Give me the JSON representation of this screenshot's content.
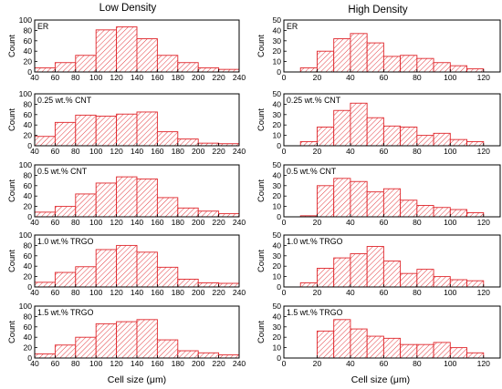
{
  "columns": [
    {
      "title": "Low Density",
      "xlabel": "Cell size (μm)",
      "xlim": [
        40,
        240
      ],
      "xticks": [
        40,
        60,
        80,
        100,
        120,
        140,
        160,
        180,
        200,
        220,
        240
      ],
      "bin_width": 20,
      "ylim": [
        0,
        100
      ],
      "yticks": [
        0,
        20,
        40,
        60,
        80,
        100
      ]
    },
    {
      "title": "High Density",
      "xlabel": "Cell size (μm)",
      "xlim": [
        0,
        130
      ],
      "xticks": [
        0,
        20,
        40,
        60,
        80,
        100,
        120
      ],
      "bin_width": 10,
      "ylim": [
        0,
        50
      ],
      "yticks": [
        0,
        10,
        20,
        30,
        40,
        50
      ]
    }
  ],
  "chart_data": [
    {
      "type": "bar",
      "column": 0,
      "label": "ER",
      "ylabel": "Count",
      "bins": [
        40,
        60,
        80,
        100,
        120,
        140,
        160,
        180,
        200,
        220
      ],
      "values": [
        8,
        18,
        32,
        81,
        87,
        64,
        32,
        18,
        8,
        5
      ]
    },
    {
      "type": "bar",
      "column": 0,
      "label": "0.25 wt.% CNT",
      "ylabel": "Count",
      "bins": [
        40,
        60,
        80,
        100,
        120,
        140,
        160,
        180,
        200,
        220
      ],
      "values": [
        18,
        45,
        59,
        57,
        61,
        65,
        27,
        13,
        5,
        4
      ]
    },
    {
      "type": "bar",
      "column": 0,
      "label": "0.5 wt.% CNT",
      "ylabel": "Count",
      "bins": [
        40,
        60,
        80,
        100,
        120,
        140,
        160,
        180,
        200,
        220
      ],
      "values": [
        9,
        20,
        44,
        65,
        77,
        73,
        37,
        17,
        11,
        6
      ]
    },
    {
      "type": "bar",
      "column": 0,
      "label": "1.0 wt.% TRGO",
      "ylabel": "Count",
      "bins": [
        40,
        60,
        80,
        100,
        120,
        140,
        160,
        180,
        200,
        220
      ],
      "values": [
        9,
        28,
        39,
        72,
        80,
        67,
        38,
        15,
        8,
        7
      ]
    },
    {
      "type": "bar",
      "column": 0,
      "label": "1.5 wt.% TRGO",
      "ylabel": "Count",
      "bins": [
        40,
        60,
        80,
        100,
        120,
        140,
        160,
        180,
        200,
        220
      ],
      "values": [
        8,
        25,
        40,
        66,
        70,
        74,
        35,
        14,
        10,
        6
      ]
    },
    {
      "type": "bar",
      "column": 1,
      "label": "ER",
      "ylabel": "Count",
      "bins": [
        10,
        20,
        30,
        40,
        50,
        60,
        70,
        80,
        90,
        100,
        110
      ],
      "values": [
        4,
        20,
        32,
        37,
        28,
        15,
        16,
        13,
        9,
        6,
        3
      ]
    },
    {
      "type": "bar",
      "column": 1,
      "label": "0.25 wt.% CNT",
      "ylabel": "Count",
      "bins": [
        10,
        20,
        30,
        40,
        50,
        60,
        70,
        80,
        90,
        100,
        110
      ],
      "values": [
        4,
        18,
        34,
        41,
        27,
        19,
        18,
        10,
        12,
        6,
        4
      ]
    },
    {
      "type": "bar",
      "column": 1,
      "label": "0.5 wt.% CNT",
      "ylabel": "Count",
      "bins": [
        10,
        20,
        30,
        40,
        50,
        60,
        70,
        80,
        90,
        100,
        110
      ],
      "values": [
        1,
        30,
        37,
        34,
        24,
        27,
        16,
        11,
        9,
        7,
        4
      ]
    },
    {
      "type": "bar",
      "column": 1,
      "label": "1.0 wt.% TRGO",
      "ylabel": "Count",
      "bins": [
        10,
        20,
        30,
        40,
        50,
        60,
        70,
        80,
        90,
        100,
        110
      ],
      "values": [
        4,
        18,
        28,
        32,
        39,
        25,
        13,
        17,
        10,
        7,
        6
      ]
    },
    {
      "type": "bar",
      "column": 1,
      "label": "1.5 wt.% TRGO",
      "ylabel": "Count",
      "bins": [
        20,
        30,
        40,
        50,
        60,
        70,
        80,
        90,
        100,
        110
      ],
      "values": [
        26,
        37,
        28,
        21,
        19,
        13,
        13,
        15,
        10,
        5
      ]
    }
  ]
}
